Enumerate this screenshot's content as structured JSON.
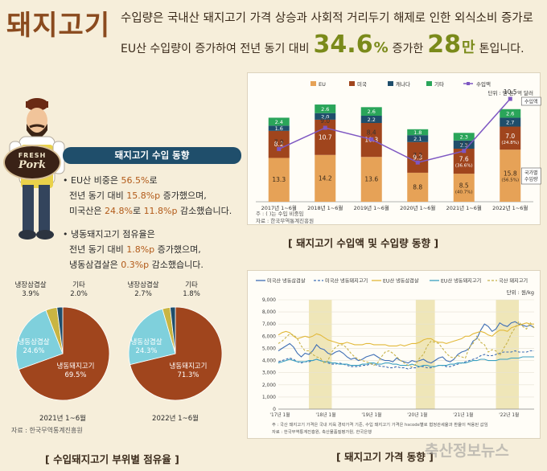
{
  "header": {
    "title": "돼지고기",
    "line1": "수입량은 국내산 돼지고기 가격 상승과 사회적 거리두기 해제로 인한 외식소비 증가로",
    "line2_pre": "EU산 수입량이 증가하여 전년 동기 대비",
    "line2_pct": "34.6",
    "line2_pct_unit": "%",
    "line2_mid": "증가한",
    "line2_num": "28",
    "line2_num_unit": "만",
    "line2_post": "톤입니다."
  },
  "mascot": {
    "apron_text_1": "FRESH",
    "apron_text_2": "Pork"
  },
  "import_trend": {
    "heading": "돼지고기 수입 동향",
    "b1_pre": "EU산 비중은 ",
    "b1_v1": "56.5%",
    "b1_post": "로",
    "b2_pre": "전년 동기 대비 ",
    "b2_v": "15.8%p",
    "b2_post": " 증가했으며,",
    "b3_pre": "미국산은 ",
    "b3_v1": "24.8%",
    "b3_mid": "로 ",
    "b3_v2": "11.8%p",
    "b3_post": " 감소했습니다.",
    "c1_pre": "냉동돼지고기 점유율은",
    "c2_pre": "전년 동기 대비 ",
    "c2_v": "1.8%p",
    "c2_post": " 증가했으며,",
    "c3_pre": "냉동삼겹살은 ",
    "c3_v": "0.3%p",
    "c3_post": " 감소했습니다."
  },
  "caption_bar": "[ 돼지고기 수입액 및 수입량 동향 ]",
  "caption_pie": "[ 수입돼지고기 부위별 점유율 ]",
  "caption_line": "[ 돼지고기 가격 동향 ]",
  "bar_notes": {
    "unit": "단위 : 만 톤, 억 달러",
    "note": "주 : (  )는 수입 비중임",
    "source": "자료 : 한국무역통계진흥원",
    "tag_value": "수입액",
    "tag_volume_1": "국가별",
    "tag_volume_2": "수입량"
  },
  "pie_notes": {
    "source": "자료 : 한국무역통계진흥원"
  },
  "line_notes": {
    "unit": "단위 : 원/kg",
    "note": "주 : 국산 돼지고기 가격은 국내 지육 경락가격 기준, 수입 돼지고기 가격은 hscode별로 협정관세율과 환율이 적용된 값임",
    "source": "자료 : 한국무역통계진흥원, 축산물품질평가원, 한국은행"
  },
  "watermark": "축산정보뉴스",
  "colors": {
    "eu": "#e6a257",
    "us": "#a0451d",
    "canada": "#1f4e6b",
    "other": "#2aa55a",
    "value_line": "#7e57c2",
    "pie_frozen": "#a0451d",
    "pie_belly": "#7fd0dc",
    "pie_chilled": "#c9b542",
    "pie_other": "#1f4e6b"
  },
  "chart_data": [
    {
      "type": "bar",
      "stacked": true,
      "categories": [
        "2017년 1~6월",
        "2018년 1~6월",
        "2019년 1~6월",
        "2020년 1~6월",
        "2021년 1~6월",
        "2022년 1~6월"
      ],
      "series": [
        {
          "name": "EU",
          "values": [
            13.3,
            14.2,
            13.6,
            8.8,
            8.5,
            15.8
          ]
        },
        {
          "name": "미국",
          "values": [
            8.2,
            10.7,
            10.3,
            9.3,
            7.6,
            7.0
          ]
        },
        {
          "name": "캐나다",
          "values": [
            1.6,
            2.0,
            2.2,
            2.1,
            2.5,
            2.7
          ]
        },
        {
          "name": "기타",
          "values": [
            2.4,
            2.6,
            2.6,
            1.8,
            2.3,
            2.6
          ]
        }
      ],
      "line_series": {
        "name": "수입액",
        "values": [
          7.9,
          9.0,
          8.4,
          7.2,
          7.8,
          10.5
        ]
      },
      "share_labels": [
        {
          "series": "EU",
          "category": "2021년 1~6월",
          "text": "(40.7%)"
        },
        {
          "series": "EU",
          "category": "2022년 1~6월",
          "text": "(56.5%)"
        },
        {
          "series": "미국",
          "category": "2021년 1~6월",
          "text": "(36.6%)"
        },
        {
          "series": "미국",
          "category": "2022년 1~6월",
          "text": "(24.8%)"
        }
      ],
      "legend_position": "top"
    },
    {
      "type": "pie",
      "caption": "2021년 1~6월",
      "labels": [
        "냉동돼지고기",
        "냉동삼겹살",
        "냉장삼겹살",
        "기타"
      ],
      "values": [
        69.5,
        24.6,
        3.9,
        2.0
      ],
      "value_text": [
        "69.5%",
        "24.6%",
        "3.9%",
        "2.0%"
      ]
    },
    {
      "type": "pie",
      "caption": "2022년 1~6월",
      "labels": [
        "냉동돼지고기",
        "냉동삼겹살",
        "냉장삼겹살",
        "기타"
      ],
      "values": [
        71.3,
        24.3,
        2.7,
        1.8
      ],
      "value_text": [
        "71.3%",
        "24.3%",
        "2.7%",
        "1.8%"
      ]
    },
    {
      "type": "line",
      "ylim": [
        0,
        9000
      ],
      "yticks": [
        "0",
        "1,000",
        "2,000",
        "3,000",
        "4,000",
        "5,000",
        "6,000",
        "7,000",
        "8,000",
        "9,000"
      ],
      "xticks": [
        "'17년 1월",
        "'18년 1월",
        "'19년 1월",
        "'20년 1월",
        "'21년 1월",
        "'22년 1월"
      ],
      "x_points_per_tick": 12,
      "shaded_periods": [
        [
          8,
          14
        ],
        [
          36,
          41
        ],
        [
          57,
          63
        ]
      ],
      "legend_position": "top",
      "series": [
        {
          "name": "미국산 냉동삼겹살",
          "color": "#3f6fb5",
          "dash": "",
          "values": [
            4800,
            5000,
            5200,
            5400,
            5100,
            4600,
            4300,
            4600,
            4500,
            4800,
            5300,
            5000,
            4900,
            4600,
            4500,
            4700,
            4800,
            4600,
            4300,
            4100,
            4200,
            4000,
            4100,
            4300,
            4400,
            4500,
            4300,
            4100,
            4000,
            4000,
            3900,
            4200,
            4000,
            3900,
            3800,
            4000,
            3900,
            4000,
            4100,
            3900,
            3800,
            4000,
            4200,
            4300,
            4000,
            3900,
            4100,
            4500,
            4700,
            4800,
            5000,
            5600,
            5800,
            6500,
            7000,
            6800,
            6400,
            6600,
            7100,
            6900,
            6800,
            7100,
            7200,
            7000,
            6900,
            6800,
            6900,
            6700
          ]
        },
        {
          "name": "미국산 냉동돼지고기",
          "color": "#3f6fb5",
          "dash": "3,2",
          "values": [
            3900,
            4000,
            4100,
            4200,
            4100,
            3900,
            3800,
            3900,
            3900,
            4000,
            4100,
            4000,
            3900,
            3800,
            3700,
            3700,
            3800,
            3700,
            3600,
            3500,
            3500,
            3500,
            3600,
            3600,
            3700,
            3700,
            3600,
            3500,
            3500,
            3400,
            3400,
            3500,
            3400,
            3400,
            3300,
            3400,
            3400,
            3500,
            3500,
            3400,
            3400,
            3500,
            3600,
            3600,
            3500,
            3500,
            3600,
            3700,
            3800,
            3900,
            4000,
            4100,
            4200,
            4400,
            4500,
            4400,
            4400,
            4500,
            4600,
            4700,
            4700,
            4700,
            4800,
            4700,
            4700,
            4700,
            4800,
            4800
          ]
        },
        {
          "name": "EU산 냉동삼겹살",
          "color": "#e2b93a",
          "dash": "",
          "values": [
            6100,
            6300,
            6400,
            6300,
            6000,
            5800,
            5900,
            6000,
            5900,
            6000,
            6200,
            6100,
            5900,
            5700,
            5600,
            5500,
            5400,
            5400,
            5500,
            5400,
            5300,
            5300,
            5300,
            5400,
            5400,
            5300,
            5300,
            5300,
            5300,
            5200,
            5200,
            5200,
            5300,
            5200,
            5300,
            5400,
            5400,
            5500,
            5700,
            5800,
            5800,
            5600,
            5500,
            5500,
            5400,
            5500,
            5600,
            5700,
            5800,
            6000,
            6000,
            6200,
            6300,
            6400,
            6300,
            6100,
            6000,
            6300,
            6500,
            6500,
            6400,
            6700,
            6800,
            6900,
            7000,
            7100,
            7000,
            7000
          ]
        },
        {
          "name": "EU산 냉동돼지고기",
          "color": "#39a0c0",
          "dash": "",
          "values": [
            3800,
            3900,
            4000,
            4100,
            4000,
            3900,
            3900,
            3900,
            4000,
            4000,
            4100,
            4000,
            3900,
            3900,
            3800,
            3800,
            3700,
            3700,
            3700,
            3600,
            3600,
            3600,
            3700,
            3700,
            3800,
            3800,
            3700,
            3700,
            3800,
            3800,
            3700,
            3700,
            3600,
            3600,
            3600,
            3700,
            3600,
            3500,
            3600,
            3600,
            3500,
            3500,
            3600,
            3600,
            3600,
            3700,
            3700,
            3800,
            3800,
            3800,
            3900,
            4000,
            4000,
            4100,
            4100,
            4000,
            4000,
            4000,
            4100,
            4100,
            4100,
            4200,
            4200,
            4200,
            4300,
            4300,
            4300,
            4300
          ]
        },
        {
          "name": "국산 돼지고기",
          "color": "#c8b34a",
          "dash": "3,2",
          "values": [
            5400,
            5600,
            5900,
            6200,
            6100,
            5800,
            5200,
            4800,
            4800,
            4500,
            4300,
            4200,
            3800,
            4000,
            4700,
            5100,
            5300,
            5300,
            5000,
            4600,
            4300,
            4100,
            4000,
            3900,
            3800,
            3600,
            3800,
            4300,
            4700,
            4800,
            4600,
            4300,
            4000,
            3800,
            3600,
            3500,
            3700,
            4200,
            4500,
            5200,
            5600,
            5500,
            5400,
            5000,
            4600,
            4300,
            4200,
            4400,
            4300,
            4200,
            5100,
            5400,
            6000,
            5500,
            5300,
            4700,
            4900,
            4800,
            4400,
            5000,
            5500,
            6200,
            6700,
            7200,
            6800,
            6600,
            7100,
            6700
          ]
        }
      ]
    }
  ]
}
